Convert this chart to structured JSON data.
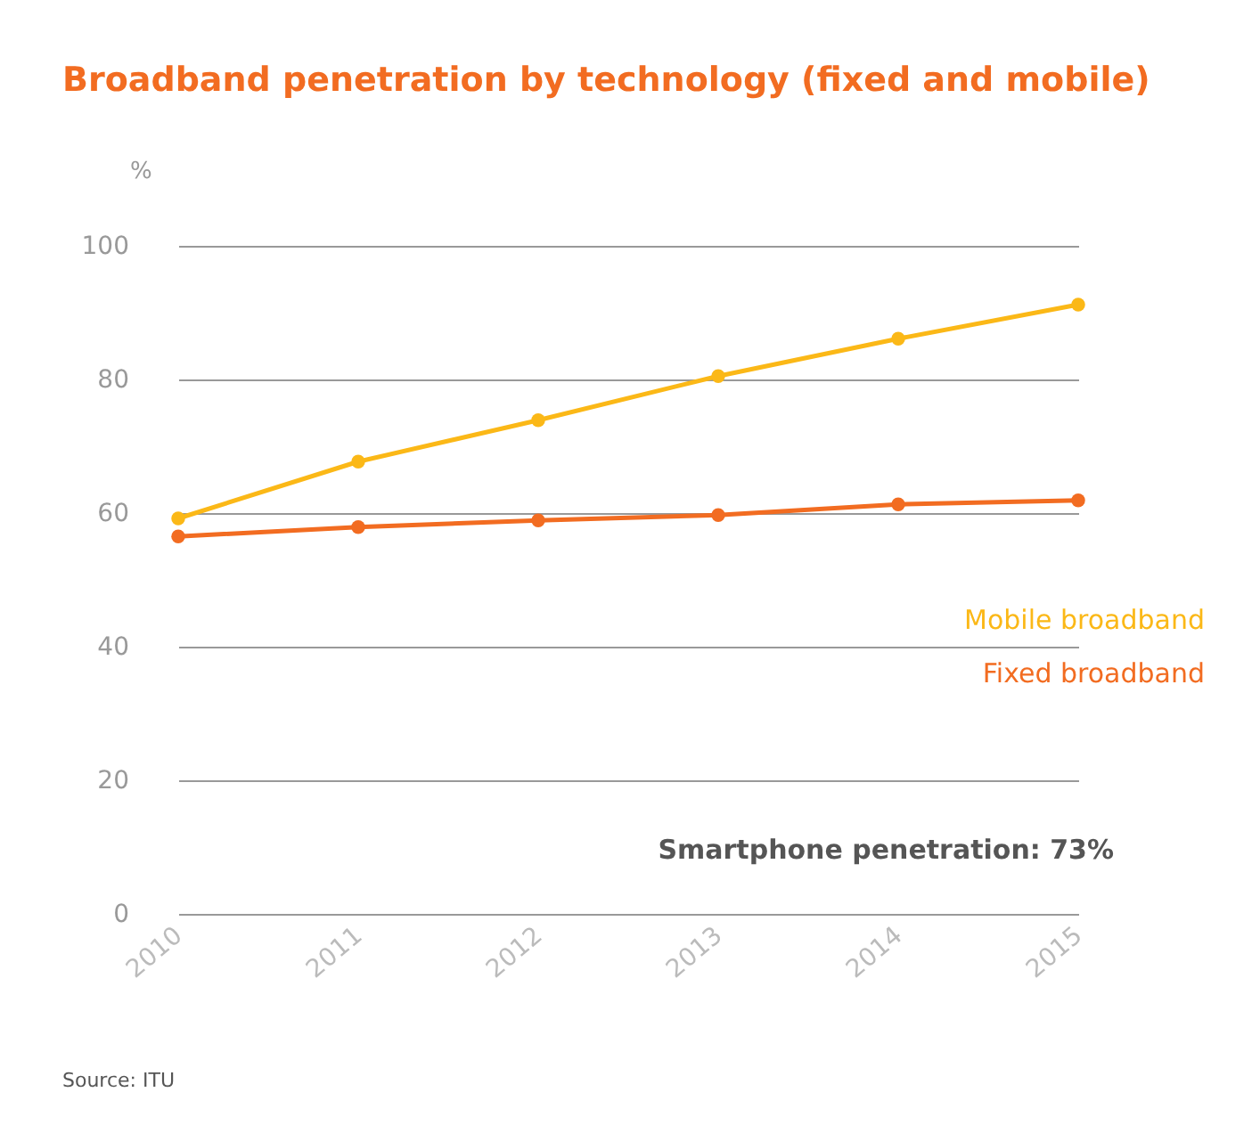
{
  "chart_data": {
    "type": "line",
    "title": "Broadband penetration by technology (fixed and mobile)",
    "ylabel": "%",
    "categories": [
      "2010",
      "2011",
      "2012",
      "2013",
      "2014",
      "2015"
    ],
    "series": [
      {
        "name": "Mobile broadband",
        "color": "#fbb817",
        "values": [
          59.2,
          67.7,
          73.9,
          80.5,
          86.1,
          91.2
        ]
      },
      {
        "name": "Fixed broadband",
        "color": "#f26c21",
        "values": [
          56.5,
          57.9,
          58.9,
          59.7,
          61.3,
          61.9
        ]
      }
    ],
    "ylim": [
      0,
      100
    ],
    "yticks": [
      0,
      20,
      40,
      60,
      80,
      100
    ],
    "grid": "y",
    "legend": false,
    "marker": "circle",
    "line_style": "solid",
    "annotations": [
      "Smartphone penetration:   73%",
      "Source:  ITU"
    ]
  }
}
